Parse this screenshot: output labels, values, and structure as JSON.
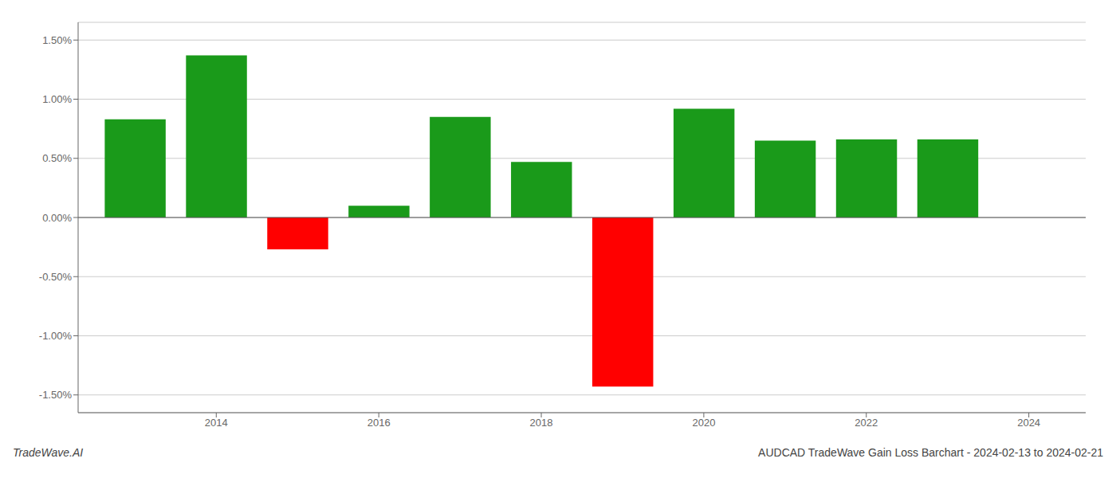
{
  "chart_data": {
    "type": "bar",
    "x": [
      2013,
      2014,
      2015,
      2016,
      2017,
      2018,
      2019,
      2020,
      2021,
      2022,
      2023
    ],
    "values": [
      0.83,
      1.37,
      -0.27,
      0.1,
      0.85,
      0.47,
      -1.43,
      0.92,
      0.65,
      0.66,
      0.66
    ],
    "colors": [
      "#1a9a1a",
      "#1a9a1a",
      "#ff0000",
      "#1a9a1a",
      "#1a9a1a",
      "#1a9a1a",
      "#ff0000",
      "#1a9a1a",
      "#1a9a1a",
      "#1a9a1a",
      "#1a9a1a"
    ],
    "xlim": [
      2012.3,
      2024.7
    ],
    "xticks": [
      2014,
      2016,
      2018,
      2020,
      2022,
      2024
    ],
    "ylim": [
      -1.65,
      1.65
    ],
    "yticks": [
      {
        "value": -1.5,
        "label": "-1.50%"
      },
      {
        "value": -1.0,
        "label": "-1.00%"
      },
      {
        "value": -0.5,
        "label": "-0.50%"
      },
      {
        "value": 0.0,
        "label": "0.00%"
      },
      {
        "value": 0.5,
        "label": "0.50%"
      },
      {
        "value": 1.0,
        "label": "1.00%"
      },
      {
        "value": 1.5,
        "label": "1.50%"
      }
    ],
    "grid": true,
    "annotations": [
      "TradeWave.AI",
      "AUDCAD TradeWave Gain Loss Barchart - 2024-02-13 to 2024-02-21"
    ]
  }
}
